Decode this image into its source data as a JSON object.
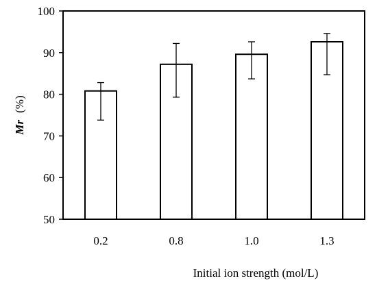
{
  "chart_data": {
    "type": "bar",
    "categories": [
      "0.2",
      "0.8",
      "1.0",
      "1.3"
    ],
    "values": [
      80.8,
      87.2,
      89.6,
      92.6
    ],
    "error_low": [
      73.8,
      79.3,
      83.7,
      84.7
    ],
    "error_high": [
      82.8,
      92.2,
      92.6,
      94.6
    ],
    "xlabel": "Initial ion strength (mol/L)",
    "ylabel_italic": "Mr",
    "ylabel_unit": "(%)",
    "ylim": [
      50,
      100
    ],
    "yticks": [
      50,
      60,
      70,
      80,
      90,
      100
    ],
    "grid": false,
    "legend": "none",
    "bar_fill": "#ffffff",
    "bar_stroke": "#000000"
  }
}
